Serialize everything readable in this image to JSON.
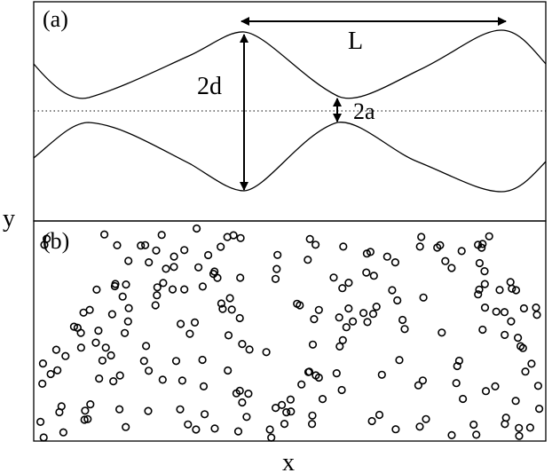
{
  "labels": {
    "panel_a": "(a)",
    "panel_b": "(b)",
    "period": "L",
    "width": "2d",
    "gap": "2a",
    "y_axis": "y",
    "x_axis": "x"
  },
  "panel_a": {
    "description_curves": "upper and lower sinuous channel walls with dotted centerline"
  },
  "panel_b": {
    "marker": "open-circle",
    "circle_count": 220
  },
  "colors": {
    "ink": "#000000",
    "background": "#ffffff"
  }
}
